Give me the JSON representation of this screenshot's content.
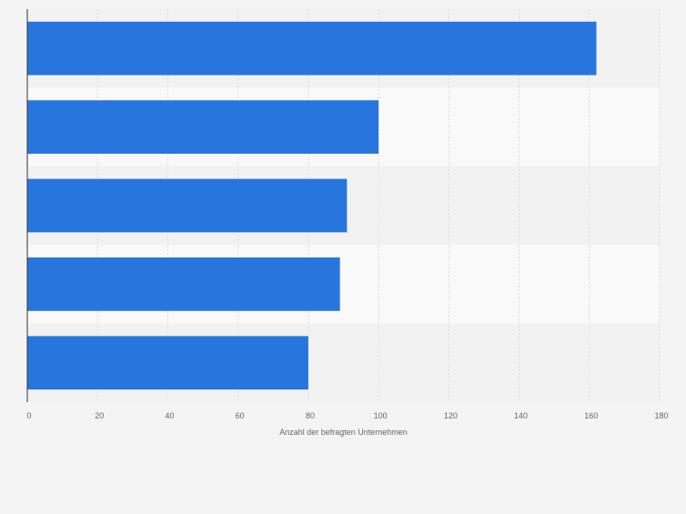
{
  "chart_data": {
    "type": "bar",
    "orientation": "horizontal",
    "categories": [
      "",
      "",
      "",
      "",
      ""
    ],
    "values": [
      162,
      100,
      91,
      89,
      80
    ],
    "xlabel": "Anzahl der befragten Unternehmen",
    "ylabel": "",
    "xlim": [
      0,
      180
    ],
    "xticks": [
      0,
      20,
      40,
      60,
      80,
      100,
      120,
      140,
      160,
      180
    ],
    "tick_labels": [
      "0",
      "20",
      "40",
      "60",
      "80",
      "100",
      "120",
      "140",
      "160",
      "180"
    ],
    "grid": true,
    "legend": "none",
    "bar_color": "#2876dd",
    "band_colors": [
      "#f2f2f2",
      "#f9f9f9"
    ]
  }
}
